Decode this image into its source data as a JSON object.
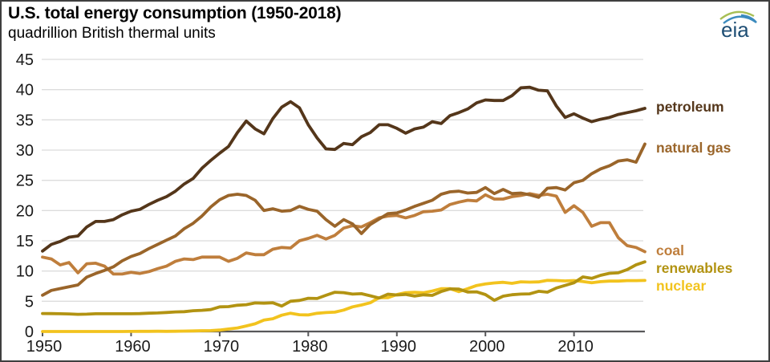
{
  "header": {
    "title": "U.S. total energy consumption (1950-2018)",
    "subtitle": "quadrillion British thermal units"
  },
  "logo": {
    "text": "eia"
  },
  "chart_data": {
    "type": "line",
    "title": "U.S. total energy consumption (1950-2018)",
    "ylabel": "quadrillion British thermal units",
    "xlabel": "",
    "grid": true,
    "legend_position": "right",
    "xlim": [
      1950,
      2018
    ],
    "ylim": [
      0,
      45
    ],
    "x_ticks": [
      1950,
      1960,
      1970,
      1980,
      1990,
      2000,
      2010
    ],
    "y_ticks": [
      0,
      5,
      10,
      15,
      20,
      25,
      30,
      35,
      40,
      45
    ],
    "x": [
      1950,
      1951,
      1952,
      1953,
      1954,
      1955,
      1956,
      1957,
      1958,
      1959,
      1960,
      1961,
      1962,
      1963,
      1964,
      1965,
      1966,
      1967,
      1968,
      1969,
      1970,
      1971,
      1972,
      1973,
      1974,
      1975,
      1976,
      1977,
      1978,
      1979,
      1980,
      1981,
      1982,
      1983,
      1984,
      1985,
      1986,
      1987,
      1988,
      1989,
      1990,
      1991,
      1992,
      1993,
      1994,
      1995,
      1996,
      1997,
      1998,
      1999,
      2000,
      2001,
      2002,
      2003,
      2004,
      2005,
      2006,
      2007,
      2008,
      2009,
      2010,
      2011,
      2012,
      2013,
      2014,
      2015,
      2016,
      2017,
      2018
    ],
    "series": [
      {
        "name": "petroleum",
        "color": "#54361a",
        "values": [
          13.3,
          14.4,
          14.9,
          15.6,
          15.8,
          17.3,
          18.2,
          18.2,
          18.5,
          19.3,
          19.9,
          20.2,
          21.0,
          21.7,
          22.3,
          23.2,
          24.4,
          25.3,
          27.0,
          28.3,
          29.5,
          30.6,
          32.9,
          34.8,
          33.5,
          32.7,
          35.2,
          37.1,
          38.0,
          37.0,
          34.2,
          32.0,
          30.2,
          30.1,
          31.1,
          30.9,
          32.2,
          32.9,
          34.2,
          34.2,
          33.6,
          32.8,
          33.5,
          33.8,
          34.7,
          34.4,
          35.7,
          36.2,
          36.8,
          37.8,
          38.3,
          38.2,
          38.2,
          39.0,
          40.3,
          40.4,
          39.9,
          39.8,
          37.3,
          35.4,
          36.0,
          35.3,
          34.7,
          35.1,
          35.4,
          35.9,
          36.2,
          36.5,
          36.9
        ]
      },
      {
        "name": "natural gas",
        "color": "#9a652a",
        "values": [
          6.0,
          6.8,
          7.1,
          7.4,
          7.7,
          9.0,
          9.6,
          10.1,
          10.7,
          11.7,
          12.4,
          12.9,
          13.7,
          14.4,
          15.1,
          15.8,
          17.0,
          17.9,
          19.1,
          20.6,
          21.8,
          22.5,
          22.7,
          22.5,
          21.7,
          20.0,
          20.3,
          19.9,
          20.0,
          20.7,
          20.2,
          19.9,
          18.5,
          17.4,
          18.5,
          17.8,
          16.2,
          17.7,
          18.6,
          19.5,
          19.6,
          20.1,
          20.7,
          21.2,
          21.7,
          22.7,
          23.1,
          23.2,
          22.9,
          23.0,
          23.8,
          22.8,
          23.5,
          22.8,
          22.9,
          22.6,
          22.2,
          23.7,
          23.8,
          23.4,
          24.6,
          25.0,
          26.1,
          26.9,
          27.4,
          28.2,
          28.4,
          28.0,
          31.0
        ]
      },
      {
        "name": "coal",
        "color": "#bf7e3c",
        "values": [
          12.3,
          12.0,
          11.0,
          11.4,
          9.7,
          11.2,
          11.3,
          10.8,
          9.5,
          9.5,
          9.8,
          9.6,
          9.9,
          10.4,
          10.8,
          11.6,
          12.0,
          11.9,
          12.3,
          12.3,
          12.3,
          11.6,
          12.1,
          13.0,
          12.7,
          12.7,
          13.6,
          13.9,
          13.8,
          15.0,
          15.4,
          15.9,
          15.3,
          15.9,
          17.1,
          17.5,
          17.3,
          18.0,
          18.8,
          19.1,
          19.2,
          18.8,
          19.2,
          19.8,
          19.9,
          20.1,
          21.0,
          21.4,
          21.7,
          21.6,
          22.6,
          21.9,
          21.9,
          22.3,
          22.5,
          22.8,
          22.5,
          22.7,
          22.4,
          19.7,
          20.8,
          19.7,
          17.4,
          18.0,
          18.0,
          15.5,
          14.2,
          13.9,
          13.2
        ]
      },
      {
        "name": "renewables",
        "color": "#b29312",
        "values": [
          2.98,
          2.96,
          2.94,
          2.91,
          2.84,
          2.87,
          2.94,
          2.93,
          2.94,
          2.93,
          2.93,
          2.96,
          3.03,
          3.07,
          3.14,
          3.24,
          3.28,
          3.44,
          3.5,
          3.63,
          4.07,
          4.11,
          4.34,
          4.43,
          4.73,
          4.69,
          4.75,
          4.21,
          5.0,
          5.14,
          5.49,
          5.46,
          5.99,
          6.49,
          6.42,
          6.19,
          6.25,
          5.91,
          5.54,
          6.17,
          6.04,
          6.13,
          5.85,
          6.06,
          5.98,
          6.61,
          7.05,
          7.01,
          6.53,
          6.56,
          6.1,
          5.16,
          5.84,
          6.08,
          6.19,
          6.23,
          6.65,
          6.51,
          7.2,
          7.62,
          8.06,
          9.03,
          8.79,
          9.29,
          9.62,
          9.71,
          10.23,
          11.03,
          11.52
        ]
      },
      {
        "name": "nuclear",
        "color": "#f2c31e",
        "values": [
          0,
          0,
          0,
          0,
          0,
          0,
          0,
          0,
          0,
          0,
          0.01,
          0.02,
          0.03,
          0.04,
          0.03,
          0.04,
          0.06,
          0.09,
          0.13,
          0.15,
          0.24,
          0.41,
          0.58,
          0.91,
          1.27,
          1.9,
          2.11,
          2.7,
          3.02,
          2.78,
          2.74,
          3.01,
          3.13,
          3.2,
          3.55,
          4.08,
          4.38,
          4.75,
          5.59,
          5.6,
          6.1,
          6.42,
          6.48,
          6.41,
          6.69,
          7.08,
          7.09,
          6.6,
          7.07,
          7.61,
          7.86,
          8.03,
          8.14,
          7.96,
          8.22,
          8.16,
          8.21,
          8.46,
          8.43,
          8.36,
          8.43,
          8.27,
          8.06,
          8.24,
          8.33,
          8.34,
          8.42,
          8.42,
          8.44
        ]
      }
    ],
    "colors": {
      "grid": "#dcdcdc",
      "axis": "#58585a",
      "tick_label": "#1a1a1a"
    }
  }
}
